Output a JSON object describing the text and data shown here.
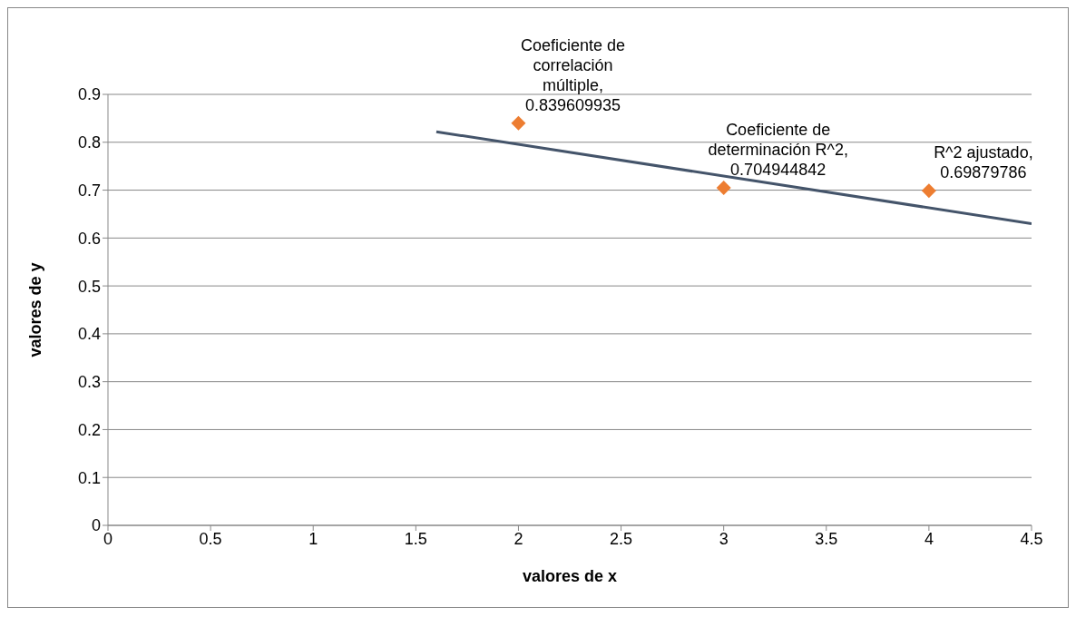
{
  "chart_data": {
    "type": "scatter",
    "xlabel": "valores de x",
    "ylabel": "valores de y",
    "x": [
      2,
      3,
      4
    ],
    "series": [
      {
        "color": "#ed7d31",
        "values": [
          0.839609935,
          0.704944842,
          0.69879786
        ],
        "marker": "diamond"
      },
      {
        "type": "line",
        "color": "#44546a",
        "x": [
          1.6,
          4.5
        ],
        "values": [
          0.822,
          0.63
        ],
        "marker": "none",
        "line_style": "solid"
      }
    ],
    "annotations": [
      {
        "text": "Coeficiente de correlación múltiple, 0.839609935",
        "x": 2,
        "y": 0.839609935
      },
      {
        "text": "Coeficiente de determinación R^2, 0.704944842",
        "x": 3,
        "y": 0.704944842
      },
      {
        "text": "R^2  ajustado, 0.69879786",
        "x": 4,
        "y": 0.69879786
      }
    ],
    "xlim": [
      0,
      4.5
    ],
    "xticks": [
      0,
      0.5,
      1,
      1.5,
      2,
      2.5,
      3,
      3.5,
      4,
      4.5
    ],
    "ylim": [
      0,
      0.9
    ],
    "yticks": [
      0,
      0.1,
      0.2,
      0.3,
      0.4,
      0.5,
      0.6,
      0.7,
      0.8,
      0.9
    ],
    "grid": "y",
    "legend": false
  }
}
